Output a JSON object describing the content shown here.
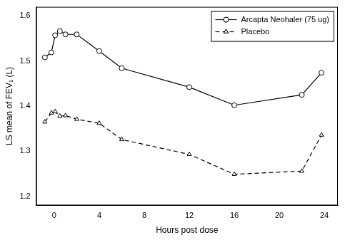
{
  "chart_data": {
    "type": "line",
    "x_label": "Hours post dose",
    "y_label": "LS mean of FEV₁ (L)",
    "xlim": [
      -1.6,
      25.2
    ],
    "xticks": [
      0,
      4,
      8,
      12,
      16,
      20,
      24
    ],
    "ylim": [
      1.18,
      1.62
    ],
    "yticks": [
      1.2,
      1.3,
      1.4,
      1.5,
      1.6
    ],
    "grid": false,
    "legend": "top-right",
    "x": [
      -0.83,
      -0.25,
      0.08,
      0.5,
      1,
      2,
      4,
      6,
      12,
      16,
      22,
      23.75
    ],
    "series": [
      {
        "name": "Arcapta Neohaler (75 ug)",
        "color": "#000000",
        "marker": "circle",
        "line_style": "solid",
        "values": [
          1.508,
          1.519,
          1.557,
          1.566,
          1.559,
          1.559,
          1.522,
          1.484,
          1.442,
          1.402,
          1.425,
          1.474
        ]
      },
      {
        "name": "Placebo",
        "color": "#000000",
        "marker": "triangle",
        "line_style": "dashed",
        "values": [
          1.365,
          1.385,
          1.388,
          1.378,
          1.379,
          1.371,
          1.362,
          1.326,
          1.293,
          1.249,
          1.256,
          1.336
        ]
      }
    ]
  }
}
